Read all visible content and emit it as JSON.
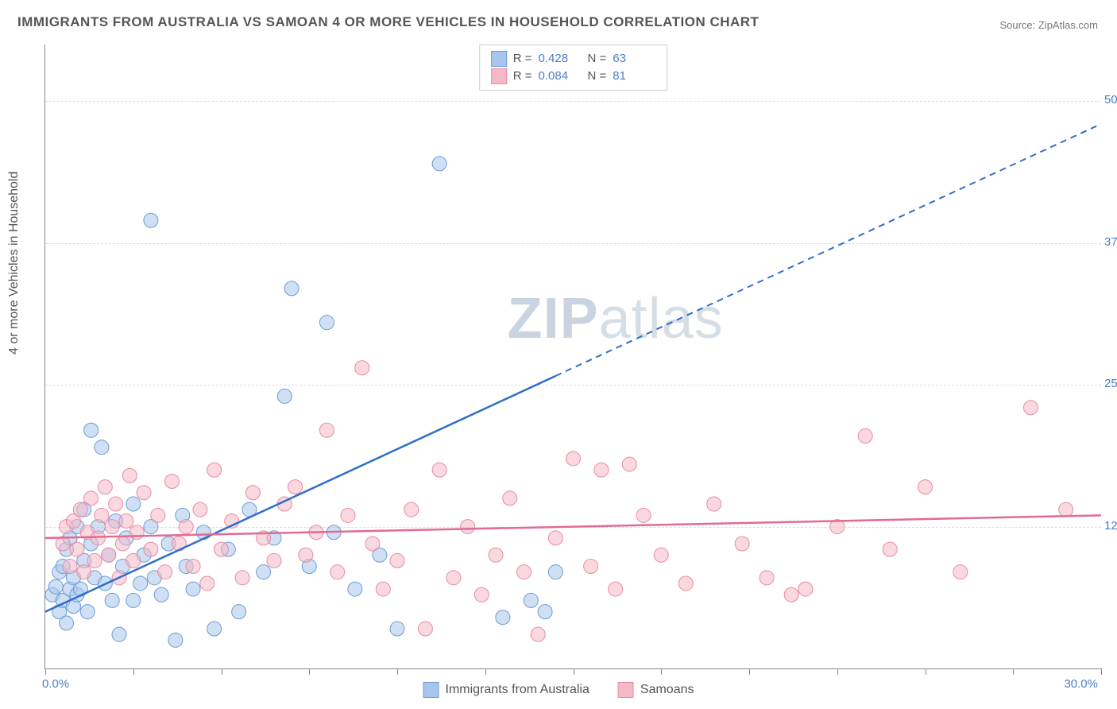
{
  "title": "IMMIGRANTS FROM AUSTRALIA VS SAMOAN 4 OR MORE VEHICLES IN HOUSEHOLD CORRELATION CHART",
  "source_label": "Source: ",
  "source_name": "ZipAtlas.com",
  "ylabel": "4 or more Vehicles in Household",
  "watermark_a": "ZIP",
  "watermark_b": "atlas",
  "chart": {
    "type": "scatter",
    "xlim": [
      0,
      30
    ],
    "ylim": [
      0,
      55
    ],
    "y_ticks": [
      12.5,
      25.0,
      37.5,
      50.0
    ],
    "y_tick_labels": [
      "12.5%",
      "25.0%",
      "37.5%",
      "50.0%"
    ],
    "x_tick_positions": [
      0,
      2.5,
      5,
      7.5,
      10,
      12.5,
      15,
      17.5,
      20,
      22.5,
      25,
      27.5,
      30
    ],
    "x_min_label": "0.0%",
    "x_max_label": "30.0%",
    "background_color": "#ffffff",
    "grid_color": "#dddddd",
    "axis_color": "#888888",
    "tick_label_color": "#4a7ec9",
    "marker_radius": 9,
    "marker_opacity": 0.55,
    "series": [
      {
        "name": "Immigrants from Australia",
        "color_fill": "#a8c6ec",
        "color_stroke": "#6b9bd8",
        "line_color": "#2f6fc7",
        "R": "0.428",
        "N": "63",
        "trend": {
          "x1": 0,
          "y1": 5.0,
          "x2": 30,
          "y2": 48.0,
          "solid_until_x": 14.5
        },
        "points": [
          [
            0.2,
            6.5
          ],
          [
            0.3,
            7.2
          ],
          [
            0.4,
            5.0
          ],
          [
            0.4,
            8.5
          ],
          [
            0.5,
            6.0
          ],
          [
            0.5,
            9.0
          ],
          [
            0.6,
            10.5
          ],
          [
            0.6,
            4.0
          ],
          [
            0.7,
            7.0
          ],
          [
            0.7,
            11.5
          ],
          [
            0.8,
            5.5
          ],
          [
            0.8,
            8.0
          ],
          [
            0.9,
            12.5
          ],
          [
            0.9,
            6.5
          ],
          [
            1.0,
            7.0
          ],
          [
            1.1,
            14.0
          ],
          [
            1.1,
            9.5
          ],
          [
            1.2,
            5.0
          ],
          [
            1.3,
            11.0
          ],
          [
            1.3,
            21.0
          ],
          [
            1.4,
            8.0
          ],
          [
            1.5,
            12.5
          ],
          [
            1.6,
            19.5
          ],
          [
            1.7,
            7.5
          ],
          [
            1.8,
            10.0
          ],
          [
            1.9,
            6.0
          ],
          [
            2.0,
            13.0
          ],
          [
            2.1,
            3.0
          ],
          [
            2.2,
            9.0
          ],
          [
            2.3,
            11.5
          ],
          [
            2.5,
            6.0
          ],
          [
            2.5,
            14.5
          ],
          [
            2.7,
            7.5
          ],
          [
            2.8,
            10.0
          ],
          [
            3.0,
            12.5
          ],
          [
            3.0,
            39.5
          ],
          [
            3.1,
            8.0
          ],
          [
            3.3,
            6.5
          ],
          [
            3.5,
            11.0
          ],
          [
            3.7,
            2.5
          ],
          [
            3.9,
            13.5
          ],
          [
            4.0,
            9.0
          ],
          [
            4.2,
            7.0
          ],
          [
            4.5,
            12.0
          ],
          [
            4.8,
            3.5
          ],
          [
            5.2,
            10.5
          ],
          [
            5.5,
            5.0
          ],
          [
            5.8,
            14.0
          ],
          [
            6.2,
            8.5
          ],
          [
            6.5,
            11.5
          ],
          [
            6.8,
            24.0
          ],
          [
            7.0,
            33.5
          ],
          [
            7.5,
            9.0
          ],
          [
            8.0,
            30.5
          ],
          [
            8.2,
            12.0
          ],
          [
            8.8,
            7.0
          ],
          [
            9.5,
            10.0
          ],
          [
            10.0,
            3.5
          ],
          [
            11.2,
            44.5
          ],
          [
            13.0,
            4.5
          ],
          [
            13.8,
            6.0
          ],
          [
            14.2,
            5.0
          ],
          [
            14.5,
            8.5
          ]
        ]
      },
      {
        "name": "Samoans",
        "color_fill": "#f4b8c6",
        "color_stroke": "#e98ba1",
        "line_color": "#e26b8f",
        "R": "0.084",
        "N": "81",
        "trend": {
          "x1": 0,
          "y1": 11.5,
          "x2": 30,
          "y2": 13.5,
          "solid_until_x": 30
        },
        "points": [
          [
            0.5,
            11.0
          ],
          [
            0.6,
            12.5
          ],
          [
            0.7,
            9.0
          ],
          [
            0.8,
            13.0
          ],
          [
            0.9,
            10.5
          ],
          [
            1.0,
            14.0
          ],
          [
            1.1,
            8.5
          ],
          [
            1.2,
            12.0
          ],
          [
            1.3,
            15.0
          ],
          [
            1.4,
            9.5
          ],
          [
            1.5,
            11.5
          ],
          [
            1.6,
            13.5
          ],
          [
            1.7,
            16.0
          ],
          [
            1.8,
            10.0
          ],
          [
            1.9,
            12.5
          ],
          [
            2.0,
            14.5
          ],
          [
            2.1,
            8.0
          ],
          [
            2.2,
            11.0
          ],
          [
            2.3,
            13.0
          ],
          [
            2.4,
            17.0
          ],
          [
            2.5,
            9.5
          ],
          [
            2.6,
            12.0
          ],
          [
            2.8,
            15.5
          ],
          [
            3.0,
            10.5
          ],
          [
            3.2,
            13.5
          ],
          [
            3.4,
            8.5
          ],
          [
            3.6,
            16.5
          ],
          [
            3.8,
            11.0
          ],
          [
            4.0,
            12.5
          ],
          [
            4.2,
            9.0
          ],
          [
            4.4,
            14.0
          ],
          [
            4.6,
            7.5
          ],
          [
            4.8,
            17.5
          ],
          [
            5.0,
            10.5
          ],
          [
            5.3,
            13.0
          ],
          [
            5.6,
            8.0
          ],
          [
            5.9,
            15.5
          ],
          [
            6.2,
            11.5
          ],
          [
            6.5,
            9.5
          ],
          [
            6.8,
            14.5
          ],
          [
            7.1,
            16.0
          ],
          [
            7.4,
            10.0
          ],
          [
            7.7,
            12.0
          ],
          [
            8.0,
            21.0
          ],
          [
            8.3,
            8.5
          ],
          [
            8.6,
            13.5
          ],
          [
            9.0,
            26.5
          ],
          [
            9.3,
            11.0
          ],
          [
            9.6,
            7.0
          ],
          [
            10.0,
            9.5
          ],
          [
            10.4,
            14.0
          ],
          [
            10.8,
            3.5
          ],
          [
            11.2,
            17.5
          ],
          [
            11.6,
            8.0
          ],
          [
            12.0,
            12.5
          ],
          [
            12.4,
            6.5
          ],
          [
            12.8,
            10.0
          ],
          [
            13.2,
            15.0
          ],
          [
            13.6,
            8.5
          ],
          [
            14.0,
            3.0
          ],
          [
            14.5,
            11.5
          ],
          [
            15.0,
            18.5
          ],
          [
            15.5,
            9.0
          ],
          [
            15.8,
            17.5
          ],
          [
            16.2,
            7.0
          ],
          [
            16.6,
            18.0
          ],
          [
            17.0,
            13.5
          ],
          [
            17.5,
            10.0
          ],
          [
            18.2,
            7.5
          ],
          [
            19.0,
            14.5
          ],
          [
            19.8,
            11.0
          ],
          [
            20.5,
            8.0
          ],
          [
            21.2,
            6.5
          ],
          [
            21.6,
            7.0
          ],
          [
            22.5,
            12.5
          ],
          [
            23.3,
            20.5
          ],
          [
            24.0,
            10.5
          ],
          [
            25.0,
            16.0
          ],
          [
            26.0,
            8.5
          ],
          [
            28.0,
            23.0
          ],
          [
            29.0,
            14.0
          ]
        ]
      }
    ]
  },
  "legend_top": {
    "r_label": "R =",
    "n_label": "N ="
  },
  "legend_bottom": {
    "items": [
      "Immigrants from Australia",
      "Samoans"
    ]
  }
}
